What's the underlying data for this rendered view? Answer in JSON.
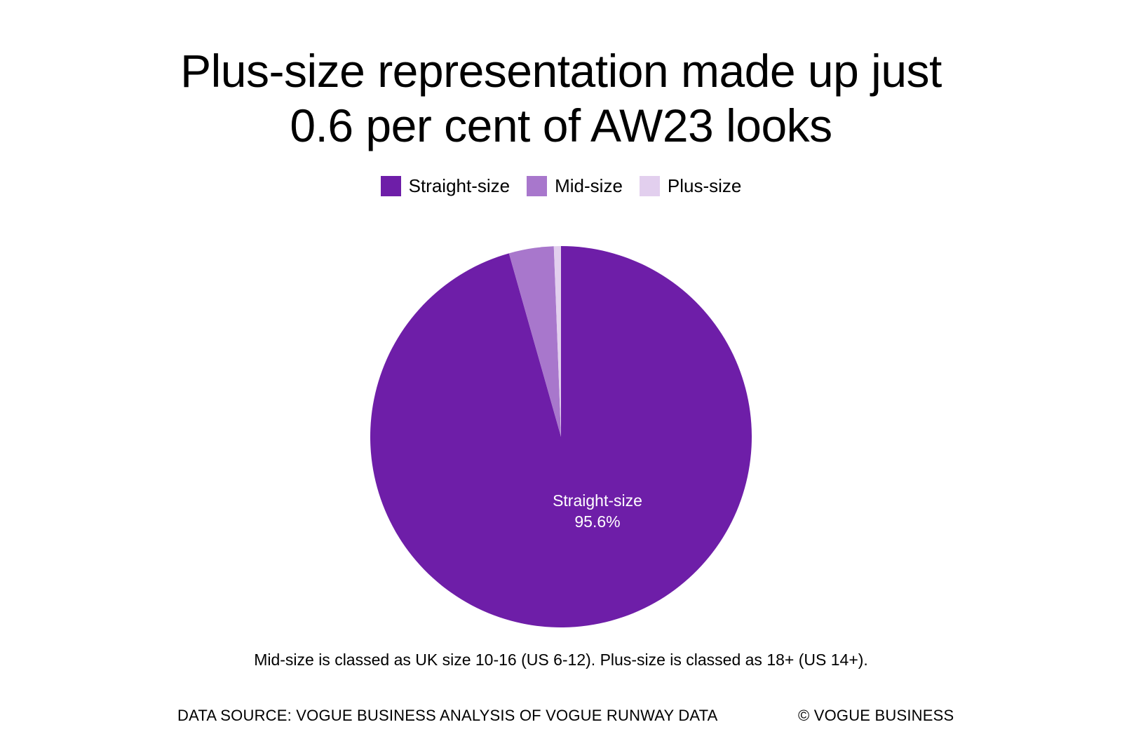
{
  "title_lines": [
    "Plus-size representation made up just",
    "0.6 per cent of AW23 looks"
  ],
  "footnote": "Mid-size is classed as UK size 10-16 (US 6-12). Plus-size is classed as 18+ (US 14+).",
  "source": "DATA SOURCE: VOGUE BUSINESS ANALYSIS OF VOGUE RUNWAY DATA",
  "copyright": "© VOGUE BUSINESS",
  "chart_data": {
    "type": "pie",
    "title": "Plus-size representation made up just 0.6 per cent of AW23 looks",
    "legend_position": "top-center",
    "slices": [
      {
        "name": "Straight-size",
        "value": 95.6,
        "color": "#6e1ea8",
        "label": "Straight-size",
        "value_label": "95.6%"
      },
      {
        "name": "Mid-size",
        "value": 3.8,
        "color": "#a877cc",
        "label": "",
        "value_label": ""
      },
      {
        "name": "Plus-size",
        "value": 0.6,
        "color": "#e2cfee",
        "label": "",
        "value_label": ""
      }
    ]
  }
}
